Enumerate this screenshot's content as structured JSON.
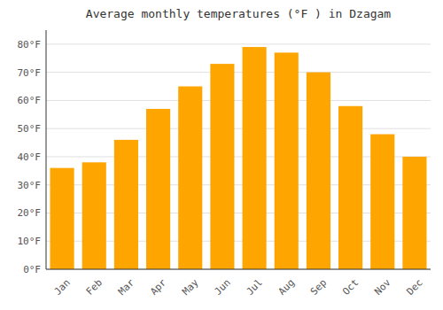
{
  "chart_data": {
    "type": "bar",
    "title": "Average monthly temperatures (°F ) in Dzagam",
    "categories": [
      "Jan",
      "Feb",
      "Mar",
      "Apr",
      "May",
      "Jun",
      "Jul",
      "Aug",
      "Sep",
      "Oct",
      "Nov",
      "Dec"
    ],
    "values": [
      36,
      38,
      46,
      57,
      65,
      73,
      79,
      77,
      70,
      58,
      48,
      40
    ],
    "color": "#FFA500",
    "ylim": [
      0,
      85
    ],
    "yticks": [
      {
        "value": 0,
        "label": "0°F"
      },
      {
        "value": 10,
        "label": "10°F"
      },
      {
        "value": 20,
        "label": "20°F"
      },
      {
        "value": 30,
        "label": "30°F"
      },
      {
        "value": 40,
        "label": "40°F"
      },
      {
        "value": 50,
        "label": "50°F"
      },
      {
        "value": 60,
        "label": "60°F"
      },
      {
        "value": 70,
        "label": "70°F"
      },
      {
        "value": 80,
        "label": "80°F"
      }
    ],
    "grid": true
  }
}
